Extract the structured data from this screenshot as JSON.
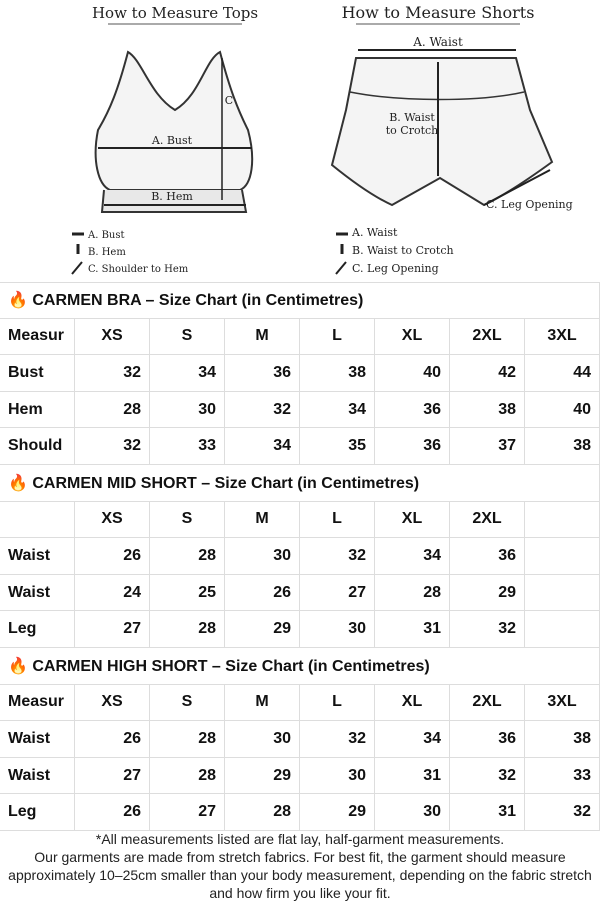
{
  "illustrations": {
    "tops": {
      "title": "How to Measure Tops",
      "mark_bust": "A. Bust",
      "mark_hem": "B. Hem",
      "mark_shoulder": "C",
      "legend": [
        "A. Bust",
        "B. Hem",
        "C. Shoulder to Hem"
      ]
    },
    "shorts": {
      "title": "How to Measure Shorts",
      "mark_waist": "A. Waist",
      "mark_crotch_1": "B. Waist",
      "mark_crotch_2": "to Crotch",
      "mark_leg": "C. Leg Opening",
      "legend": [
        "A. Waist",
        "B. Waist to Crotch",
        "C. Leg Opening"
      ]
    }
  },
  "tables": [
    {
      "title": "🔥 CARMEN BRA – Size Chart (in Centimetres)",
      "header_label": "Measur",
      "sizes": [
        "XS",
        "S",
        "M",
        "L",
        "XL",
        "2XL",
        "3XL"
      ],
      "rows": [
        {
          "label": "Bust",
          "values": [
            32,
            34,
            36,
            38,
            40,
            42,
            44
          ]
        },
        {
          "label": "Hem",
          "values": [
            28,
            30,
            32,
            34,
            36,
            38,
            40
          ]
        },
        {
          "label": "Should",
          "values": [
            32,
            33,
            34,
            35,
            36,
            37,
            38
          ]
        }
      ]
    },
    {
      "title": "🔥 CARMEN MID SHORT – Size Chart (in Centimetres)",
      "sizes": [
        "XS",
        "S",
        "M",
        "L",
        "XL",
        "2XL"
      ],
      "rows": [
        {
          "label": "Waist",
          "values": [
            26,
            28,
            30,
            32,
            34,
            36
          ]
        },
        {
          "label": "Waist",
          "values": [
            24,
            25,
            26,
            27,
            28,
            29
          ]
        },
        {
          "label": "Leg",
          "values": [
            27,
            28,
            29,
            30,
            31,
            32
          ]
        }
      ]
    },
    {
      "title": "🔥 CARMEN HIGH SHORT – Size Chart (in Centimetres)",
      "header_label": "Measur",
      "sizes": [
        "XS",
        "S",
        "M",
        "L",
        "XL",
        "2XL",
        "3XL"
      ],
      "rows": [
        {
          "label": "Waist",
          "values": [
            26,
            28,
            30,
            32,
            34,
            36,
            38
          ]
        },
        {
          "label": "Waist",
          "values": [
            27,
            28,
            29,
            30,
            31,
            32,
            33
          ]
        },
        {
          "label": "Leg",
          "values": [
            26,
            27,
            28,
            29,
            30,
            31,
            32
          ]
        }
      ]
    }
  ],
  "footer": {
    "note": "*All measurements listed are flat lay, half-garment measurements.",
    "advice": "Our garments are made from stretch fabrics. For best fit, the garment should measure approximately 10–25cm smaller than your body measurement, depending on the fabric stretch and how firm you like your fit."
  }
}
